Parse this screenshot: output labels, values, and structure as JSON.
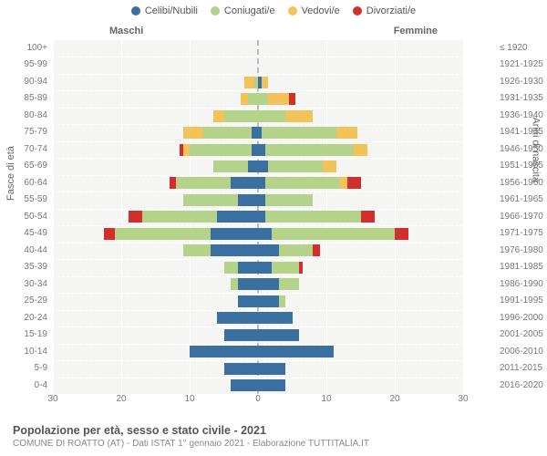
{
  "legend": {
    "items": [
      {
        "label": "Celibi/Nubili",
        "color": "#3b6fa0"
      },
      {
        "label": "Coniugati/e",
        "color": "#b4d28a"
      },
      {
        "label": "Vedovi/e",
        "color": "#f3c35b"
      },
      {
        "label": "Divorziati/e",
        "color": "#d22e2e"
      }
    ]
  },
  "gender": {
    "male": "Maschi",
    "female": "Femmine"
  },
  "axes": {
    "left_title": "Fasce di età",
    "right_title": "Anni di nascita",
    "x_ticks": [
      30,
      20,
      10,
      0,
      10,
      20,
      30
    ],
    "x_max": 30
  },
  "background_color": "#f5f5f3",
  "grid_color": "#ffffff",
  "rows": [
    {
      "age": "100+",
      "birth": "≤ 1920",
      "m": {
        "c": 0,
        "g": 0,
        "v": 0,
        "d": 0
      },
      "f": {
        "c": 0,
        "g": 0,
        "v": 0,
        "d": 0
      }
    },
    {
      "age": "95-99",
      "birth": "1921-1925",
      "m": {
        "c": 0,
        "g": 0,
        "v": 0,
        "d": 0
      },
      "f": {
        "c": 0,
        "g": 0,
        "v": 0,
        "d": 0
      }
    },
    {
      "age": "90-94",
      "birth": "1926-1930",
      "m": {
        "c": 0,
        "g": 0.5,
        "v": 1.5,
        "d": 0
      },
      "f": {
        "c": 0.5,
        "g": 0,
        "v": 1,
        "d": 0
      }
    },
    {
      "age": "85-89",
      "birth": "1931-1935",
      "m": {
        "c": 0,
        "g": 1.5,
        "v": 1,
        "d": 0
      },
      "f": {
        "c": 0,
        "g": 1.5,
        "v": 3,
        "d": 1
      }
    },
    {
      "age": "80-84",
      "birth": "1936-1940",
      "m": {
        "c": 0,
        "g": 5,
        "v": 1.5,
        "d": 0
      },
      "f": {
        "c": 0,
        "g": 4,
        "v": 4,
        "d": 0
      }
    },
    {
      "age": "75-79",
      "birth": "1941-1945",
      "m": {
        "c": 1,
        "g": 7,
        "v": 3,
        "d": 0
      },
      "f": {
        "c": 0.5,
        "g": 11,
        "v": 3,
        "d": 0
      }
    },
    {
      "age": "70-74",
      "birth": "1946-1950",
      "m": {
        "c": 1,
        "g": 9,
        "v": 1,
        "d": 0.5
      },
      "f": {
        "c": 1,
        "g": 13,
        "v": 2,
        "d": 0
      }
    },
    {
      "age": "65-69",
      "birth": "1951-1955",
      "m": {
        "c": 1.5,
        "g": 5,
        "v": 0,
        "d": 0
      },
      "f": {
        "c": 1.5,
        "g": 8,
        "v": 2,
        "d": 0
      }
    },
    {
      "age": "60-64",
      "birth": "1956-1960",
      "m": {
        "c": 4,
        "g": 8,
        "v": 0,
        "d": 1
      },
      "f": {
        "c": 1,
        "g": 11,
        "v": 1,
        "d": 2
      }
    },
    {
      "age": "55-59",
      "birth": "1961-1965",
      "m": {
        "c": 3,
        "g": 8,
        "v": 0,
        "d": 0
      },
      "f": {
        "c": 1,
        "g": 7,
        "v": 0,
        "d": 0
      }
    },
    {
      "age": "50-54",
      "birth": "1966-1970",
      "m": {
        "c": 6,
        "g": 11,
        "v": 0,
        "d": 2
      },
      "f": {
        "c": 1,
        "g": 14,
        "v": 0,
        "d": 2
      }
    },
    {
      "age": "45-49",
      "birth": "1971-1975",
      "m": {
        "c": 7,
        "g": 14,
        "v": 0,
        "d": 1.5
      },
      "f": {
        "c": 2,
        "g": 18,
        "v": 0,
        "d": 2
      }
    },
    {
      "age": "40-44",
      "birth": "1976-1980",
      "m": {
        "c": 7,
        "g": 4,
        "v": 0,
        "d": 0
      },
      "f": {
        "c": 3,
        "g": 5,
        "v": 0,
        "d": 1
      }
    },
    {
      "age": "35-39",
      "birth": "1981-1985",
      "m": {
        "c": 3,
        "g": 2,
        "v": 0,
        "d": 0
      },
      "f": {
        "c": 2,
        "g": 4,
        "v": 0,
        "d": 0.5
      }
    },
    {
      "age": "30-34",
      "birth": "1986-1990",
      "m": {
        "c": 3,
        "g": 1,
        "v": 0,
        "d": 0
      },
      "f": {
        "c": 3,
        "g": 3,
        "v": 0,
        "d": 0
      }
    },
    {
      "age": "25-29",
      "birth": "1991-1995",
      "m": {
        "c": 3,
        "g": 0,
        "v": 0,
        "d": 0
      },
      "f": {
        "c": 3,
        "g": 1,
        "v": 0,
        "d": 0
      }
    },
    {
      "age": "20-24",
      "birth": "1996-2000",
      "m": {
        "c": 6,
        "g": 0,
        "v": 0,
        "d": 0
      },
      "f": {
        "c": 5,
        "g": 0,
        "v": 0,
        "d": 0
      }
    },
    {
      "age": "15-19",
      "birth": "2001-2005",
      "m": {
        "c": 5,
        "g": 0,
        "v": 0,
        "d": 0
      },
      "f": {
        "c": 6,
        "g": 0,
        "v": 0,
        "d": 0
      }
    },
    {
      "age": "10-14",
      "birth": "2006-2010",
      "m": {
        "c": 10,
        "g": 0,
        "v": 0,
        "d": 0
      },
      "f": {
        "c": 11,
        "g": 0,
        "v": 0,
        "d": 0
      }
    },
    {
      "age": "5-9",
      "birth": "2011-2015",
      "m": {
        "c": 5,
        "g": 0,
        "v": 0,
        "d": 0
      },
      "f": {
        "c": 4,
        "g": 0,
        "v": 0,
        "d": 0
      }
    },
    {
      "age": "0-4",
      "birth": "2016-2020",
      "m": {
        "c": 4,
        "g": 0,
        "v": 0,
        "d": 0
      },
      "f": {
        "c": 4,
        "g": 0,
        "v": 0,
        "d": 0
      }
    }
  ],
  "footer": {
    "title": "Popolazione per età, sesso e stato civile - 2021",
    "subtitle": "COMUNE DI ROATTO (AT) - Dati ISTAT 1° gennaio 2021 - Elaborazione TUTTITALIA.IT"
  }
}
